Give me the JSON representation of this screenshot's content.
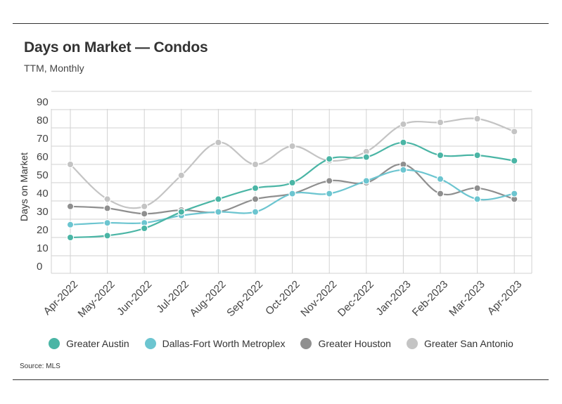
{
  "title": "Days on Market — Condos",
  "subtitle": "TTM, Monthly",
  "source": "Source:  MLS",
  "chart_data": {
    "type": "line",
    "ylabel": "Days on Market",
    "ylim": [
      0,
      90
    ],
    "yticks": [
      "0",
      "10",
      "20",
      "30",
      "40",
      "50",
      "60",
      "70",
      "80",
      "90"
    ],
    "grid": true,
    "legend_position": "bottom",
    "categories": [
      "Apr-2022",
      "May-2022",
      "Jun-2022",
      "Jul-2022",
      "Aug-2022",
      "Sep-2022",
      "Oct-2022",
      "Nov-2022",
      "Dec-2022",
      "Jan-2023",
      "Feb-2023",
      "Mar-2023",
      "Apr-2023"
    ],
    "series": [
      {
        "name": "Greater Austin",
        "color": "#4ab5a5",
        "values": [
          10,
          11,
          15,
          24,
          31,
          37,
          40,
          53,
          54,
          62,
          55,
          55,
          52
        ]
      },
      {
        "name": "Dallas-Fort Worth Metroplex",
        "color": "#6cc5d0",
        "values": [
          17,
          18,
          18,
          22,
          24,
          24,
          34,
          34,
          41,
          47,
          42,
          31,
          34
        ]
      },
      {
        "name": "Greater Houston",
        "color": "#8f8f8f",
        "values": [
          27,
          26,
          23,
          25,
          24,
          31,
          34,
          41,
          40,
          50,
          34,
          37,
          31
        ]
      },
      {
        "name": "Greater San Antonio",
        "color": "#c4c4c4",
        "values": [
          50,
          31,
          27,
          44,
          62,
          50,
          60,
          52,
          57,
          72,
          73,
          75,
          68
        ]
      }
    ]
  }
}
